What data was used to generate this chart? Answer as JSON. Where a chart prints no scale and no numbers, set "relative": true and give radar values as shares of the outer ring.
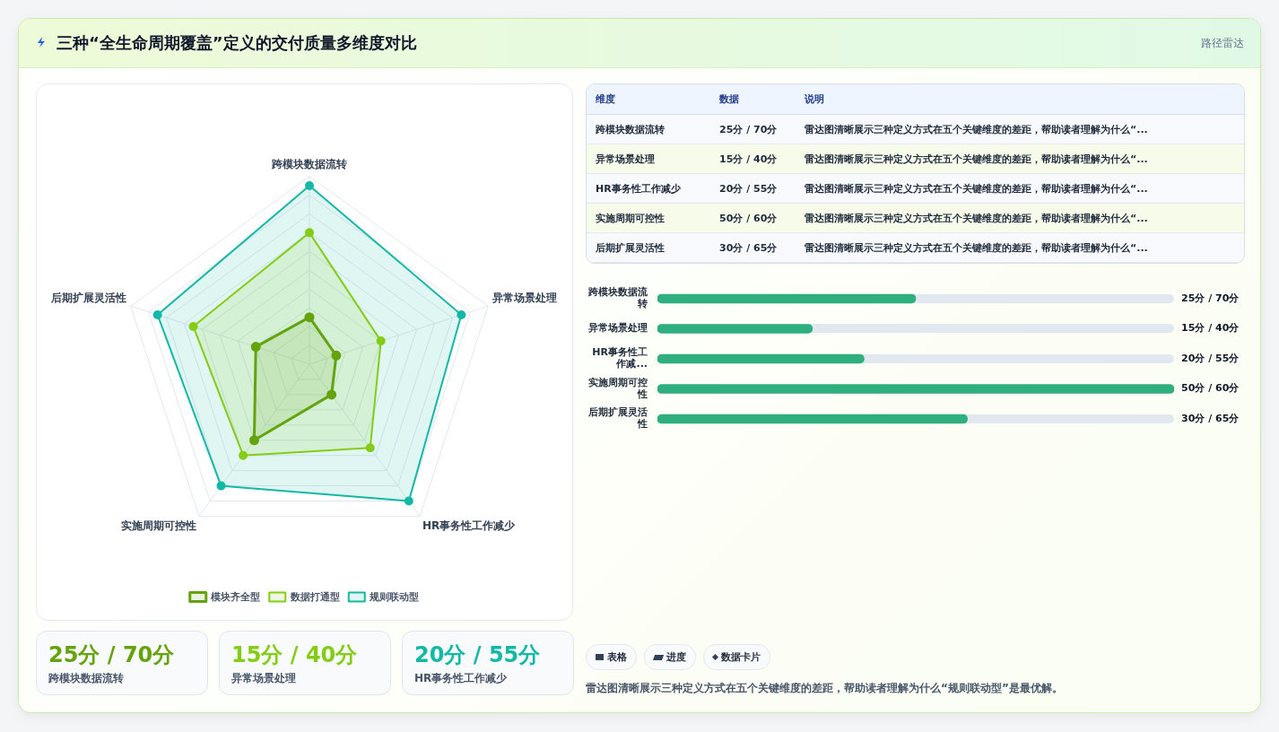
{
  "chart_data": [
    {
      "type": "radar",
      "title": "三种“全生命周期覆盖”定义的交付质量多维度对比",
      "relative": true,
      "legend": "bottom",
      "marker": "circle",
      "categories": [
        "跨模块数据流转",
        "异常场景处理",
        "HR事务性工作减少",
        "实施周期可控性",
        "后期扩展灵活性"
      ],
      "series": [
        {
          "name": "模块齐全型",
          "color": "#65a30d",
          "values": [
            0.25,
            0.15,
            0.2,
            0.5,
            0.3
          ]
        },
        {
          "name": "数据打通型",
          "color": "#84cc16",
          "values": [
            0.7,
            0.4,
            0.55,
            0.6,
            0.65
          ]
        },
        {
          "name": "规则联动型",
          "color": "#14b8a6",
          "values": [
            0.95,
            0.85,
            0.9,
            0.8,
            0.85
          ]
        }
      ]
    },
    {
      "type": "bar",
      "orientation": "horizontal",
      "tick_labels": "y",
      "categories": [
        "跨模块数据流转",
        "异常场景处理",
        "HR事务性工作减...",
        "实施周期可控性",
        "后期扩展灵活性"
      ],
      "series": [
        {
          "color": "#2fae7e",
          "values": [
            25,
            15,
            20,
            50,
            30
          ],
          "value_labels": [
            "25分 / 70分",
            "15分 / 40分",
            "20分 / 55分",
            "50分 / 60分",
            "30分 / 65分"
          ]
        }
      ]
    },
    {
      "type": "other",
      "annotations": [
        "路径雷达",
        "维度",
        "数据",
        "说明",
        "跨模块数据流转",
        "25分 / 70分",
        "雷达图清晰展示三种定义方式在五个关键维度的差距，帮助读者理解为什么“...",
        "异常场景处理",
        "15分 / 40分",
        "雷达图清晰展示三种定义方式在五个关键维度的差距，帮助读者理解为什么“...",
        "HR事务性工作减少",
        "20分 / 55分",
        "雷达图清晰展示三种定义方式在五个关键维度的差距，帮助读者理解为什么“...",
        "实施周期可控性",
        "50分 / 60分",
        "雷达图清晰展示三种定义方式在五个关键维度的差距，帮助读者理解为什么“...",
        "后期扩展灵活性",
        "30分 / 65分",
        "雷达图清晰展示三种定义方式在五个关键维度的差距，帮助读者理解为什么“...",
        "25分 / 70分",
        "跨模块数据流转",
        "15分 / 40分",
        "异常场景处理",
        "20分 / 55分",
        "HR事务性工作减少",
        "表格",
        "进度",
        "数据卡片",
        "雷达图清晰展示三种定义方式在五个关键维度的差距，帮助读者理解为什么“规则联动型”是最优解。"
      ]
    }
  ]
}
